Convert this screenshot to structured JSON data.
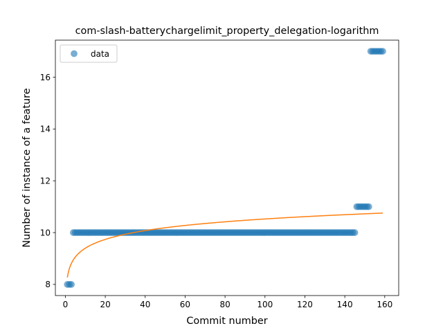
{
  "chart_data": {
    "type": "scatter",
    "title": "com-slash-batterychargelimit_property_delegation-logarithm",
    "xlabel": "Commit number",
    "ylabel": "Number of instance of a feature",
    "xlim": [
      -5,
      167
    ],
    "ylim": [
      7.57,
      17.43
    ],
    "xticks": [
      0,
      20,
      40,
      60,
      80,
      100,
      120,
      140,
      160
    ],
    "yticks": [
      8,
      10,
      12,
      14,
      16
    ],
    "grid": false,
    "legend": {
      "placement": "top-left",
      "entries": [
        "data"
      ]
    },
    "colors": {
      "data": "#1f77b4",
      "fit": "#ff7f0e"
    },
    "series": [
      {
        "name": "data",
        "kind": "scatter",
        "segments": [
          {
            "x_from": 1,
            "x_to": 3,
            "y": 8
          },
          {
            "x_from": 4,
            "x_to": 145,
            "y": 10
          },
          {
            "x_from": 146,
            "x_to": 152,
            "y": 11
          },
          {
            "x_from": 153,
            "x_to": 159,
            "y": 17
          }
        ]
      },
      {
        "kind": "line",
        "model": "logarithmic",
        "a": 8.27,
        "b": 0.49,
        "x_range": [
          1,
          159
        ]
      }
    ]
  }
}
